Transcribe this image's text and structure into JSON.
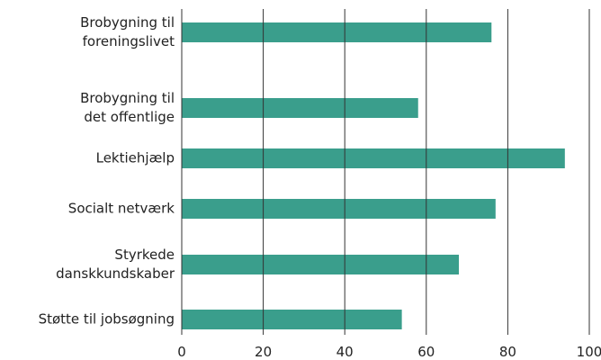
{
  "chart_data": {
    "type": "bar",
    "orientation": "horizontal",
    "categories": [
      "Brobygning til\nforeningslivet",
      "Brobygning til\ndet offentlige",
      "Lektiehjælp",
      "Socialt netværk",
      "Styrkede\ndanskkundskaber",
      "Støtte til jobsøgning"
    ],
    "values": [
      76,
      58,
      94,
      77,
      68,
      54
    ],
    "color": "#3a9e8c",
    "xlim": [
      0,
      100
    ],
    "xticks": [
      0,
      20,
      40,
      60,
      80,
      100
    ],
    "grid": true
  }
}
